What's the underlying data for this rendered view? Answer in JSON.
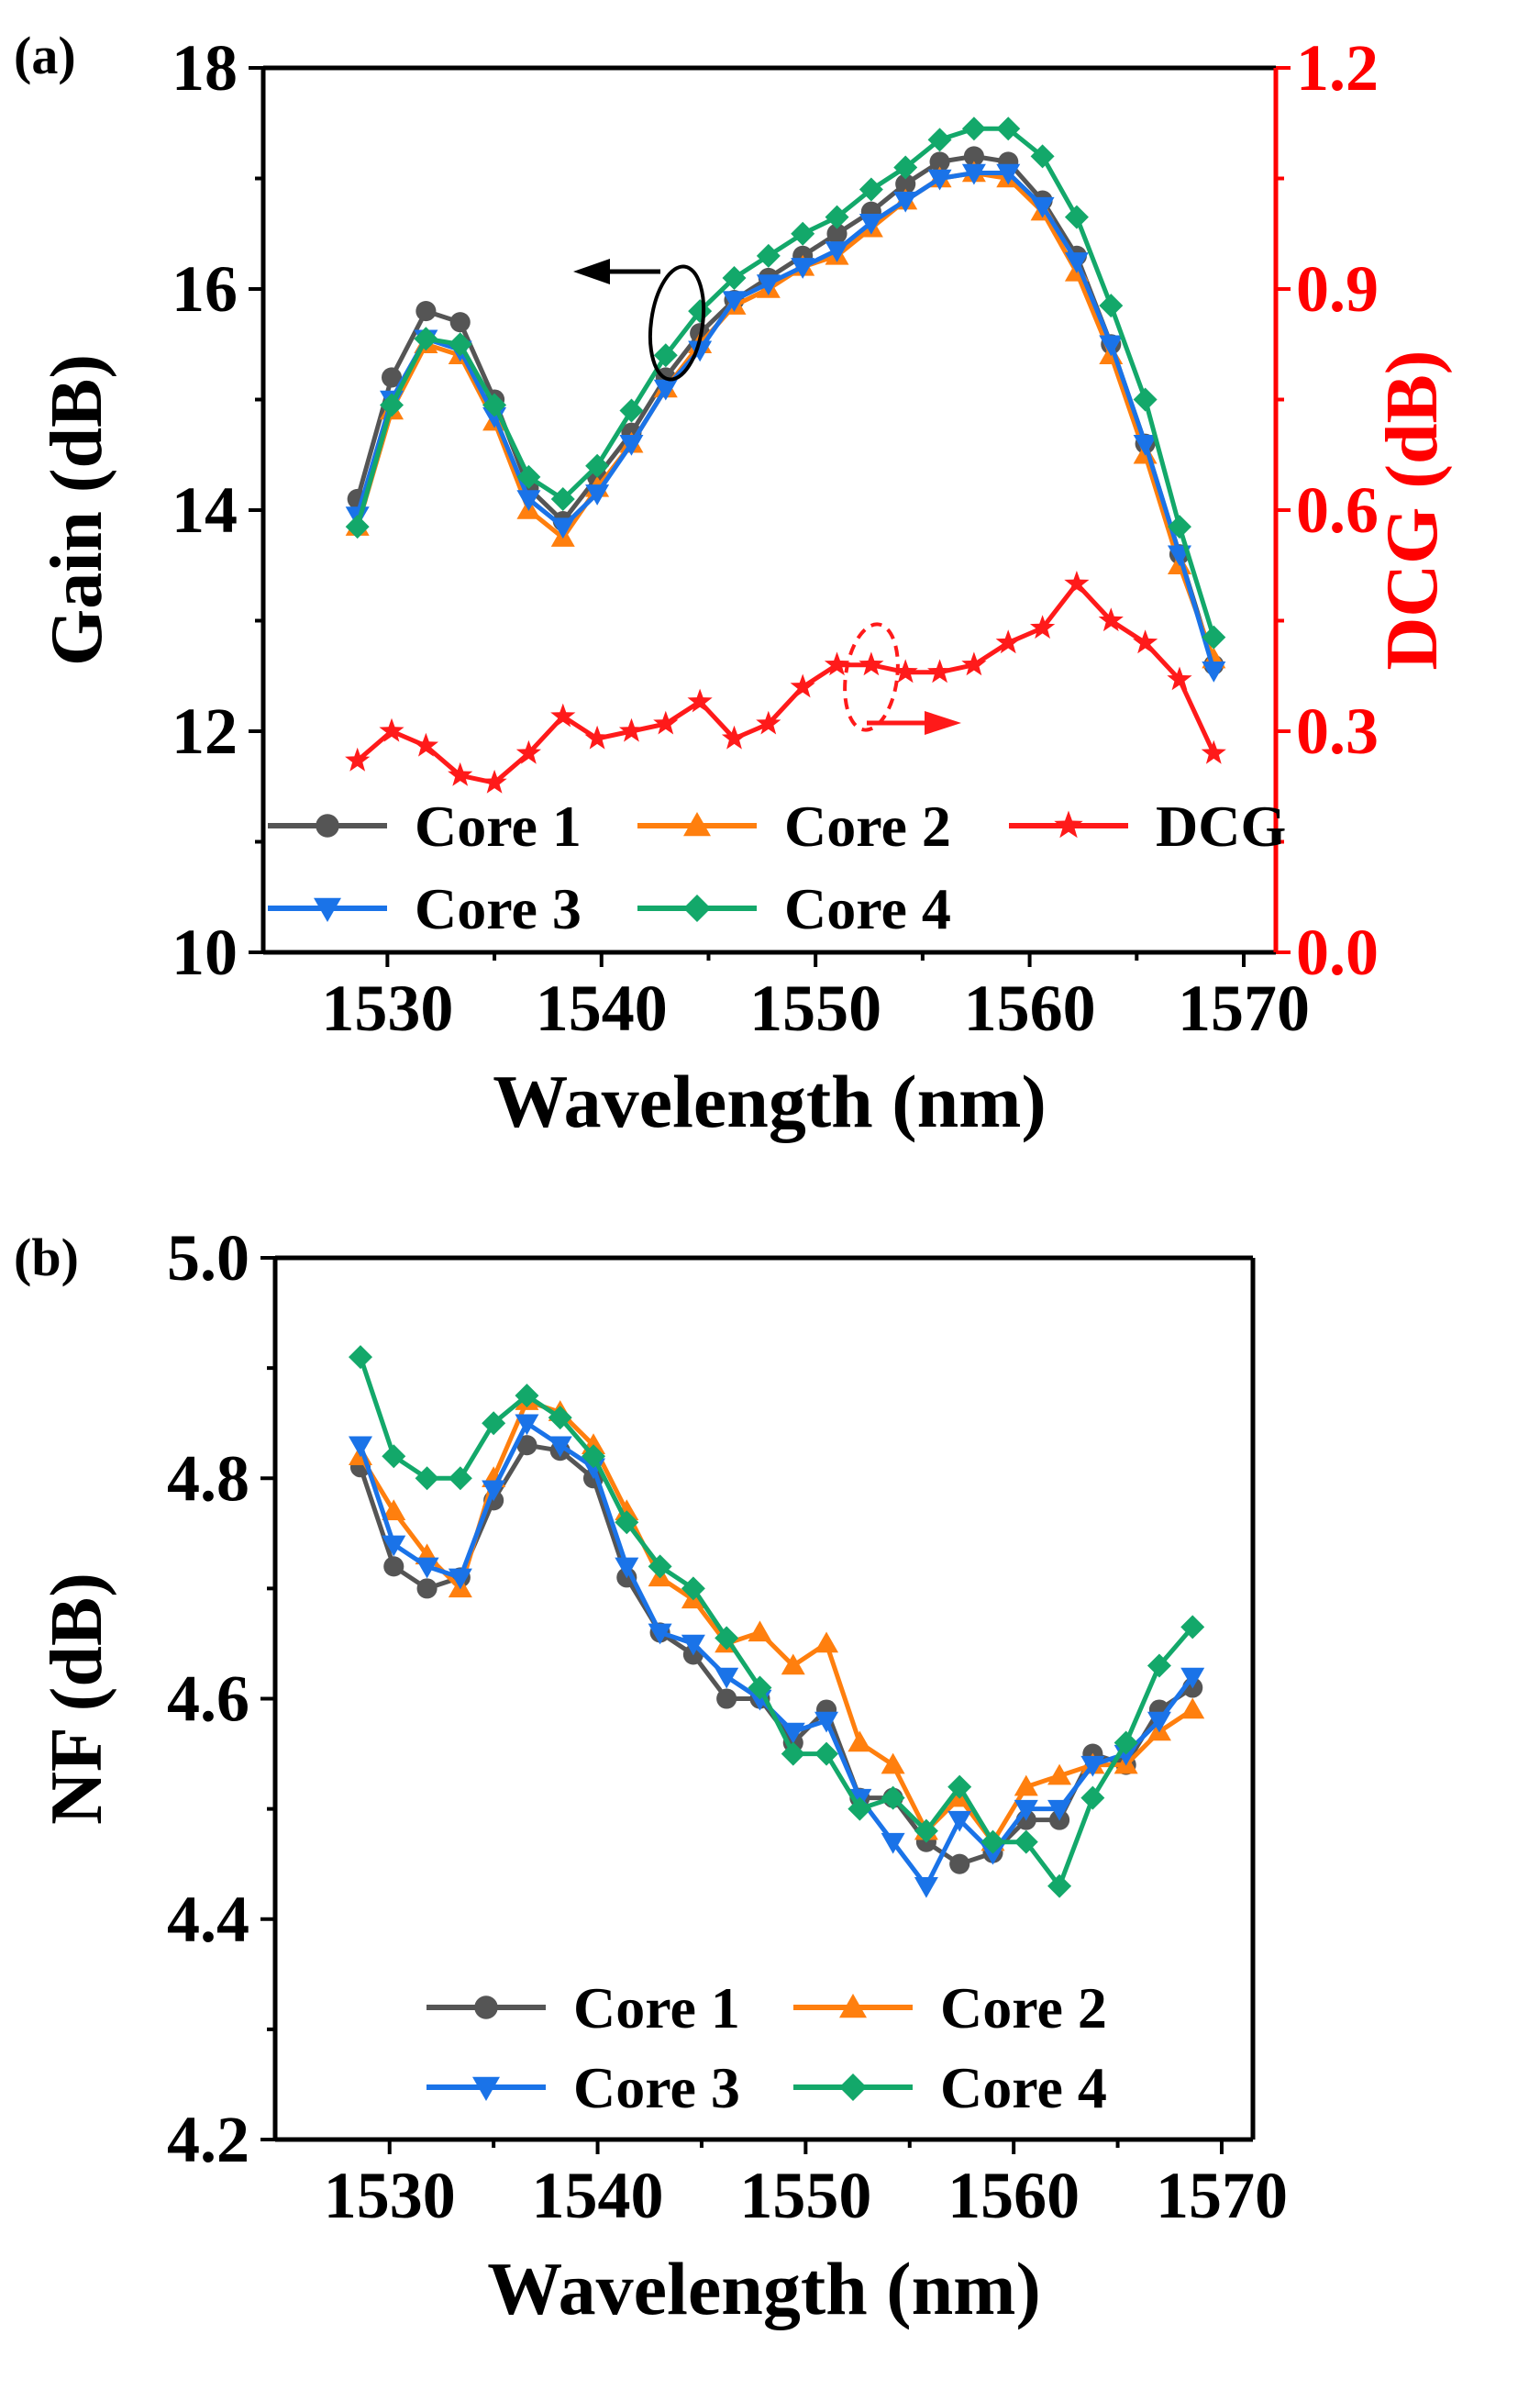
{
  "chart_data": [
    {
      "panel": "(a)",
      "type": "line",
      "xlabel": "Wavelength (nm)",
      "ylabel": "Gain (dB)",
      "ylabel_right": "DCG (dB)",
      "xlim": [
        1524.2,
        1571.5
      ],
      "ylim": [
        10,
        18
      ],
      "ylim_right": [
        0,
        1.2
      ],
      "xticks": [
        "1530",
        "1540",
        "1550",
        "1560",
        "1570"
      ],
      "yticks": [
        "10",
        "12",
        "14",
        "16",
        "18"
      ],
      "yticks_right": [
        "0.0",
        "0.3",
        "0.6",
        "0.9",
        "1.2"
      ],
      "x": [
        1528.6,
        1530.2,
        1531.8,
        1533.4,
        1535.0,
        1536.6,
        1538.2,
        1539.8,
        1541.4,
        1543.0,
        1544.6,
        1546.2,
        1547.8,
        1549.4,
        1551.0,
        1552.6,
        1554.2,
        1555.8,
        1557.4,
        1559.0,
        1560.6,
        1562.2,
        1563.8,
        1565.4,
        1567.0,
        1568.6
      ],
      "series": [
        {
          "name": "Core 1",
          "color": "#555555",
          "marker": "circle",
          "axis": "left",
          "values": [
            14.1,
            15.2,
            15.8,
            15.7,
            15.0,
            14.2,
            13.9,
            14.3,
            14.7,
            15.2,
            15.6,
            15.9,
            16.1,
            16.3,
            16.5,
            16.7,
            16.95,
            17.15,
            17.2,
            17.15,
            16.8,
            16.3,
            15.5,
            14.6,
            13.6,
            12.6
          ]
        },
        {
          "name": "Core 2",
          "color": "#ff7f0e",
          "marker": "triangle-up",
          "axis": "left",
          "values": [
            13.85,
            14.9,
            15.5,
            15.4,
            14.8,
            14.0,
            13.75,
            14.2,
            14.6,
            15.1,
            15.5,
            15.85,
            16.0,
            16.2,
            16.3,
            16.55,
            16.8,
            17.0,
            17.05,
            17.0,
            16.7,
            16.15,
            15.4,
            14.5,
            13.5,
            12.65
          ]
        },
        {
          "name": "Core 3",
          "color": "#1a73e8",
          "marker": "triangle-down",
          "axis": "left",
          "values": [
            13.95,
            15.0,
            15.55,
            15.45,
            14.85,
            14.1,
            13.85,
            14.15,
            14.6,
            15.1,
            15.45,
            15.9,
            16.05,
            16.2,
            16.35,
            16.6,
            16.8,
            17.0,
            17.05,
            17.05,
            16.75,
            16.25,
            15.5,
            14.6,
            13.6,
            12.55
          ]
        },
        {
          "name": "Core 4",
          "color": "#13a86a",
          "marker": "diamond",
          "axis": "left",
          "values": [
            13.85,
            14.95,
            15.55,
            15.5,
            14.95,
            14.3,
            14.1,
            14.4,
            14.9,
            15.4,
            15.8,
            16.1,
            16.3,
            16.5,
            16.65,
            16.9,
            17.1,
            17.35,
            17.45,
            17.45,
            17.2,
            16.65,
            15.85,
            15.0,
            13.85,
            12.85
          ]
        },
        {
          "name": "DCG",
          "color": "#ff1a1a",
          "marker": "star",
          "axis": "right",
          "values": [
            0.26,
            0.3,
            0.28,
            0.24,
            0.23,
            0.27,
            0.32,
            0.29,
            0.3,
            0.31,
            0.34,
            0.29,
            0.31,
            0.36,
            0.39,
            0.39,
            0.38,
            0.38,
            0.39,
            0.42,
            0.44,
            0.5,
            0.45,
            0.42,
            0.37,
            0.27
          ]
        }
      ],
      "legend_placement": "bottom-left",
      "right_axis_color": "#ff0000"
    },
    {
      "panel": "(b)",
      "type": "line",
      "xlabel": "Wavelength (nm)",
      "ylabel": "NF (dB)",
      "xlim": [
        1524.5,
        1571.5
      ],
      "ylim": [
        4.2,
        5.0
      ],
      "xticks": [
        "1530",
        "1540",
        "1550",
        "1560",
        "1570"
      ],
      "yticks": [
        "4.2",
        "4.4",
        "4.6",
        "4.8",
        "5.0"
      ],
      "x": [
        1528.6,
        1530.2,
        1531.8,
        1533.4,
        1535.0,
        1536.6,
        1538.2,
        1539.8,
        1541.4,
        1543.0,
        1544.6,
        1546.2,
        1547.8,
        1549.4,
        1551.0,
        1552.6,
        1554.2,
        1555.8,
        1557.4,
        1559.0,
        1560.6,
        1562.2,
        1563.8,
        1565.4,
        1567.0,
        1568.6
      ],
      "series": [
        {
          "name": "Core 1",
          "color": "#555555",
          "marker": "circle",
          "values": [
            4.81,
            4.72,
            4.7,
            4.71,
            4.78,
            4.83,
            4.825,
            4.8,
            4.71,
            4.66,
            4.64,
            4.6,
            4.6,
            4.56,
            4.59,
            4.51,
            4.51,
            4.47,
            4.45,
            4.46,
            4.49,
            4.49,
            4.55,
            4.54,
            4.59,
            4.61
          ]
        },
        {
          "name": "Core 2",
          "color": "#ff7f0e",
          "marker": "triangle-up",
          "values": [
            4.82,
            4.77,
            4.73,
            4.7,
            4.8,
            4.87,
            4.86,
            4.83,
            4.77,
            4.71,
            4.69,
            4.65,
            4.66,
            4.63,
            4.65,
            4.56,
            4.54,
            4.48,
            4.51,
            4.47,
            4.52,
            4.53,
            4.54,
            4.54,
            4.57,
            4.59
          ]
        },
        {
          "name": "Core 3",
          "color": "#1a73e8",
          "marker": "triangle-down",
          "values": [
            4.83,
            4.74,
            4.72,
            4.71,
            4.79,
            4.85,
            4.83,
            4.81,
            4.72,
            4.66,
            4.65,
            4.62,
            4.6,
            4.57,
            4.58,
            4.51,
            4.47,
            4.43,
            4.49,
            4.46,
            4.5,
            4.5,
            4.54,
            4.55,
            4.58,
            4.62
          ]
        },
        {
          "name": "Core 4",
          "color": "#13a86a",
          "marker": "diamond",
          "values": [
            4.91,
            4.82,
            4.8,
            4.8,
            4.85,
            4.875,
            4.855,
            4.82,
            4.76,
            4.72,
            4.7,
            4.655,
            4.61,
            4.55,
            4.55,
            4.5,
            4.51,
            4.48,
            4.52,
            4.47,
            4.47,
            4.43,
            4.51,
            4.56,
            4.63,
            4.665
          ]
        }
      ],
      "legend_placement": "bottom-center"
    }
  ]
}
